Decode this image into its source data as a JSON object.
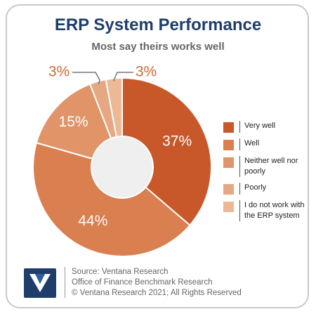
{
  "header": {
    "title": "ERP System Performance",
    "subtitle": "Most say theirs works well"
  },
  "chart_data": {
    "type": "pie",
    "title": "ERP System Performance",
    "subtitle": "Most say theirs works well",
    "style": "donut",
    "legend_position": "right",
    "series": [
      {
        "name": "Very well",
        "value": 37,
        "label": "37%",
        "color": "#c8582a"
      },
      {
        "name": "Well",
        "value": 44,
        "label": "44%",
        "color": "#da7f4f"
      },
      {
        "name": "Neither well nor poorly",
        "value": 15,
        "label": "15%",
        "color": "#e09468"
      },
      {
        "name": "Poorly",
        "value": 3,
        "label": "3%",
        "color": "#e6a882"
      },
      {
        "name": "I do not work with the ERP system",
        "value": 3,
        "label": "3%",
        "color": "#edb896"
      }
    ]
  },
  "legend": {
    "items": [
      {
        "label": "Very well",
        "color": "#c8582a"
      },
      {
        "label": "Well",
        "color": "#da7f4f"
      },
      {
        "label": "Neither well nor poorly",
        "color": "#e09468"
      },
      {
        "label": "Poorly",
        "color": "#e6a882"
      },
      {
        "label": "I do not work with the ERP system",
        "color": "#edb896"
      }
    ]
  },
  "footer": {
    "source": "Source: Ventana Research",
    "report": "Office of Finance Benchmark Research",
    "copyright": "© Ventana Research 2021; All Rights Reserved"
  },
  "logo": {
    "icon": "ventana-logo-icon",
    "color": "#1f3d6b"
  }
}
